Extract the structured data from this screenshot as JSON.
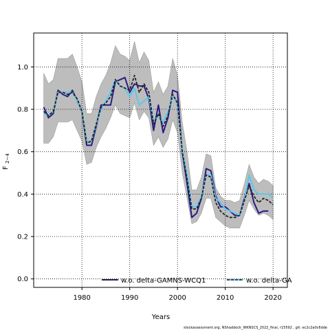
{
  "chart_data": {
    "type": "line",
    "xlabel": "Years",
    "ylabel_main": "F",
    "ylabel_sub": "2−4",
    "xlim": [
      1969.9,
      2023.0
    ],
    "ylim": [
      -0.04,
      1.16
    ],
    "x_ticks": [
      1980,
      1990,
      2000,
      2010,
      2020
    ],
    "y_ticks": [
      0.0,
      0.2,
      0.4,
      0.6,
      0.8,
      1.0
    ],
    "x_tick_labels": [
      "1980",
      "1990",
      "2000",
      "2010",
      "2020"
    ],
    "y_tick_labels": [
      "0.0",
      "0.2",
      "0.4",
      "0.6",
      "0.8",
      "1.0"
    ],
    "grid": true,
    "legend_position": "bottom-center",
    "footnote": "stockassessment.org, NShaddock_WKNSCS_2022_final, r15592 , git: ec2c2a0c6dde",
    "x": [
      1972,
      1973,
      1974,
      1975,
      1976,
      1977,
      1978,
      1979,
      1980,
      1981,
      1982,
      1983,
      1984,
      1985,
      1986,
      1987,
      1988,
      1989,
      1990,
      1991,
      1992,
      1993,
      1994,
      1995,
      1996,
      1997,
      1998,
      1999,
      2000,
      2001,
      2002,
      2003,
      2004,
      2005,
      2006,
      2007,
      2008,
      2009,
      2010,
      2011,
      2012,
      2013,
      2014,
      2015,
      2016,
      2017,
      2018,
      2019,
      2020
    ],
    "band": {
      "upper": [
        0.97,
        0.92,
        0.94,
        1.04,
        1.04,
        1.04,
        1.06,
        1.0,
        0.93,
        0.78,
        0.78,
        0.86,
        0.92,
        0.96,
        1.02,
        1.1,
        1.06,
        1.05,
        1.03,
        1.12,
        1.02,
        1.07,
        1.03,
        0.88,
        0.93,
        0.87,
        0.91,
        1.04,
        0.96,
        0.74,
        0.6,
        0.42,
        0.42,
        0.48,
        0.59,
        0.58,
        0.43,
        0.39,
        0.37,
        0.37,
        0.36,
        0.37,
        0.45,
        0.54,
        0.48,
        0.45,
        0.47,
        0.46,
        0.44
      ],
      "lower": [
        0.64,
        0.64,
        0.67,
        0.74,
        0.74,
        0.74,
        0.75,
        0.7,
        0.65,
        0.54,
        0.55,
        0.62,
        0.67,
        0.71,
        0.76,
        0.82,
        0.78,
        0.77,
        0.76,
        0.83,
        0.75,
        0.79,
        0.76,
        0.63,
        0.67,
        0.62,
        0.66,
        0.75,
        0.69,
        0.5,
        0.38,
        0.26,
        0.27,
        0.31,
        0.38,
        0.38,
        0.29,
        0.27,
        0.25,
        0.24,
        0.24,
        0.24,
        0.3,
        0.37,
        0.33,
        0.3,
        0.31,
        0.3,
        0.28
      ]
    },
    "series": [
      {
        "name": "w.o. delta-GAMNS-WCQ1",
        "color": "#2a1a86",
        "style": "solid",
        "values": [
          0.81,
          0.76,
          0.78,
          0.89,
          0.87,
          0.86,
          0.89,
          0.84,
          0.79,
          0.63,
          0.63,
          0.72,
          0.82,
          0.82,
          0.82,
          0.93,
          0.94,
          0.95,
          0.88,
          0.92,
          0.91,
          0.91,
          0.85,
          0.7,
          0.82,
          0.69,
          0.76,
          0.89,
          0.88,
          0.6,
          0.45,
          0.29,
          0.31,
          0.38,
          0.52,
          0.51,
          0.39,
          0.34,
          0.34,
          0.32,
          0.3,
          0.3,
          0.38,
          0.45,
          0.36,
          0.31,
          0.32,
          0.32,
          null
        ]
      },
      {
        "name": "w.o. delta-GAMNS-WCQ1",
        "color": "#222222",
        "style": "dashed",
        "values": [
          0.79,
          0.77,
          0.79,
          0.88,
          0.88,
          0.87,
          0.88,
          0.85,
          0.79,
          0.64,
          0.65,
          0.73,
          0.81,
          0.83,
          0.86,
          0.94,
          0.91,
          0.9,
          0.89,
          0.96,
          0.88,
          0.92,
          0.88,
          0.73,
          0.78,
          0.72,
          0.77,
          0.87,
          0.83,
          0.6,
          0.47,
          0.33,
          0.33,
          0.38,
          0.49,
          0.48,
          0.36,
          0.32,
          0.3,
          0.29,
          0.29,
          0.3,
          0.37,
          0.44,
          0.39,
          0.36,
          0.38,
          0.37,
          0.35
        ]
      },
      {
        "name": "w.o. delta-GA",
        "color": "#5ac8f0",
        "style": "solid",
        "values": [
          0.78,
          0.77,
          0.79,
          0.88,
          0.88,
          0.88,
          0.88,
          0.84,
          0.79,
          0.65,
          0.65,
          0.73,
          0.8,
          0.84,
          0.88,
          0.94,
          0.91,
          0.9,
          0.86,
          0.9,
          0.82,
          0.84,
          0.86,
          0.74,
          0.77,
          0.74,
          0.79,
          0.87,
          0.82,
          0.61,
          0.49,
          0.34,
          0.34,
          0.39,
          0.49,
          0.49,
          0.38,
          0.36,
          0.33,
          0.32,
          0.31,
          0.3,
          0.37,
          0.49,
          0.42,
          0.4,
          0.4,
          0.4,
          0.38
        ]
      }
    ],
    "legend": [
      {
        "label": "w.o. delta-GAMNS-WCQ1",
        "color": "#2a1a86",
        "dash_color": "#222222"
      },
      {
        "label": "w.o. delta-GA",
        "color": "#5ac8f0",
        "dash_color": "#222222"
      }
    ]
  }
}
